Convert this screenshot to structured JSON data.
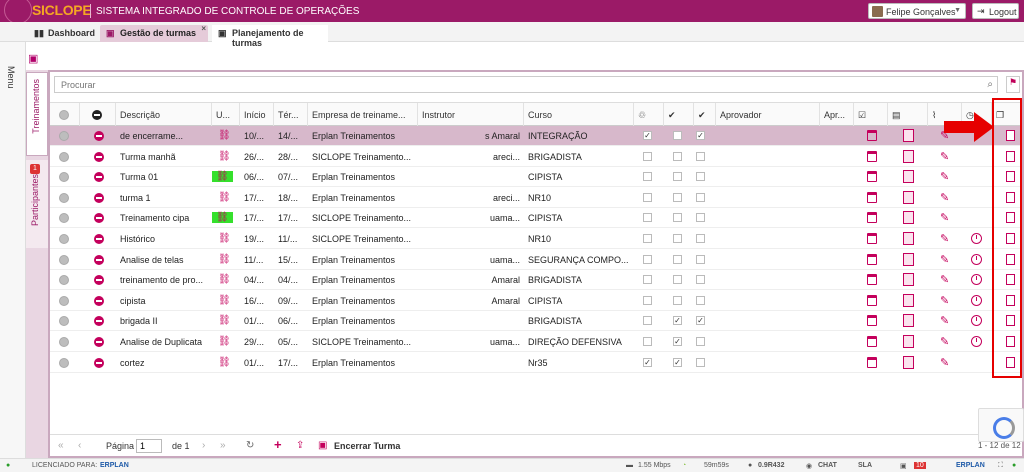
{
  "app": {
    "logo": "SICLOPE",
    "title": "SISTEMA INTEGRADO DE CONTROLE DE OPERAÇÕES",
    "user_name": "Felipe Gonçalves",
    "logout_label": "Logout",
    "menu_label": "Menu"
  },
  "tabs": [
    {
      "label": "Dashboard",
      "icon": "bar-chart-icon"
    },
    {
      "label": "Gestão de turmas",
      "icon": "calendar-icon",
      "active": true
    },
    {
      "label": "Planejamento de turmas",
      "icon": "calendar-icon"
    }
  ],
  "side_tabs": {
    "treinamentos": "Treinamentos",
    "participantes": "Participantes",
    "participantes_badge": "1"
  },
  "search": {
    "placeholder": "Procurar"
  },
  "columns": [
    "",
    "",
    "Descrição",
    "U...",
    "Início",
    "Tér...",
    "Empresa de treiname...",
    "Instrutor",
    "Curso",
    "",
    "",
    "",
    "Aprovador",
    "Apr...",
    "",
    "",
    "",
    "",
    ""
  ],
  "rows": [
    {
      "descricao": "de encerrame...",
      "inicio": "10/...",
      "termino": "14/...",
      "empresa": "Erplan Treinamentos",
      "instrutor": "s Amaral",
      "curso": "INTEGRAÇÃO",
      "cb1": "✓",
      "cb2": "",
      "cb3": "✓",
      "green": false,
      "clock": false,
      "selected": true
    },
    {
      "descricao": "Turma manhã",
      "inicio": "26/...",
      "termino": "28/...",
      "empresa": "SICLOPE Treinamento...",
      "instrutor": "areci...",
      "curso": "BRIGADISTA",
      "cb1": "",
      "cb2": "",
      "cb3": "",
      "green": false,
      "clock": false
    },
    {
      "descricao": "Turma 01",
      "inicio": "06/...",
      "termino": "07/...",
      "empresa": "Erplan Treinamentos",
      "instrutor": "",
      "curso": "CIPISTA",
      "cb1": "",
      "cb2": "",
      "cb3": "",
      "green": true,
      "clock": false
    },
    {
      "descricao": "turma 1",
      "inicio": "17/...",
      "termino": "18/...",
      "empresa": "Erplan Treinamentos",
      "instrutor": "areci...",
      "curso": "NR10",
      "cb1": "",
      "cb2": "",
      "cb3": "",
      "green": false,
      "clock": false
    },
    {
      "descricao": "Treinamento cipa",
      "inicio": "17/...",
      "termino": "17/...",
      "empresa": "SICLOPE Treinamento...",
      "instrutor": "uama...",
      "curso": "CIPISTA",
      "cb1": "",
      "cb2": "",
      "cb3": "",
      "green": true,
      "clock": false
    },
    {
      "descricao": "Histórico",
      "inicio": "19/...",
      "termino": "11/...",
      "empresa": "SICLOPE Treinamento...",
      "instrutor": "",
      "curso": "NR10",
      "cb1": "",
      "cb2": "",
      "cb3": "",
      "green": false,
      "clock": true
    },
    {
      "descricao": "Analise de telas",
      "inicio": "11/...",
      "termino": "15/...",
      "empresa": "Erplan Treinamentos",
      "instrutor": "uama...",
      "curso": "SEGURANÇA COMPO...",
      "cb1": "",
      "cb2": "",
      "cb3": "",
      "green": false,
      "clock": true
    },
    {
      "descricao": "treinamento de pro...",
      "inicio": "04/...",
      "termino": "04/...",
      "empresa": "Erplan Treinamentos",
      "instrutor": "Amaral",
      "curso": "BRIGADISTA",
      "cb1": "",
      "cb2": "",
      "cb3": "",
      "green": false,
      "clock": true
    },
    {
      "descricao": "cipista",
      "inicio": "16/...",
      "termino": "09/...",
      "empresa": "Erplan Treinamentos",
      "instrutor": "Amaral",
      "curso": "CIPISTA",
      "cb1": "",
      "cb2": "",
      "cb3": "",
      "green": false,
      "clock": true
    },
    {
      "descricao": "brigada II",
      "inicio": "01/...",
      "termino": "06/...",
      "empresa": "Erplan Treinamentos",
      "instrutor": "",
      "curso": "BRIGADISTA",
      "cb1": "",
      "cb2": "✓",
      "cb3": "✓",
      "green": false,
      "clock": true
    },
    {
      "descricao": "Analise de Duplicata",
      "inicio": "29/...",
      "termino": "05/...",
      "empresa": "SICLOPE Treinamento...",
      "instrutor": "uama...",
      "curso": "DIREÇÃO DEFENSIVA",
      "cb1": "",
      "cb2": "✓",
      "cb3": "",
      "green": false,
      "clock": true
    },
    {
      "descricao": "cortez",
      "inicio": "01/...",
      "termino": "17/...",
      "empresa": "Erplan Treinamentos",
      "instrutor": "",
      "curso": "Nr35",
      "cb1": "✓",
      "cb2": "✓",
      "cb3": "",
      "green": false,
      "clock": false
    }
  ],
  "pager": {
    "page_label": "Página",
    "page_value": "1",
    "of_label": "de 1",
    "encerrar_label": "Encerrar Turma",
    "range": "1 - 12 de 12"
  },
  "footer": {
    "licensed": "LICENCIADO PARA:",
    "erplan": "ERPLAN",
    "speed": "1.55 Mbps",
    "time": "59m59s",
    "version": "0.9R432",
    "chat": "CHAT",
    "sla": "SLA",
    "badge": "10",
    "erplan2": "ERPLAN"
  }
}
